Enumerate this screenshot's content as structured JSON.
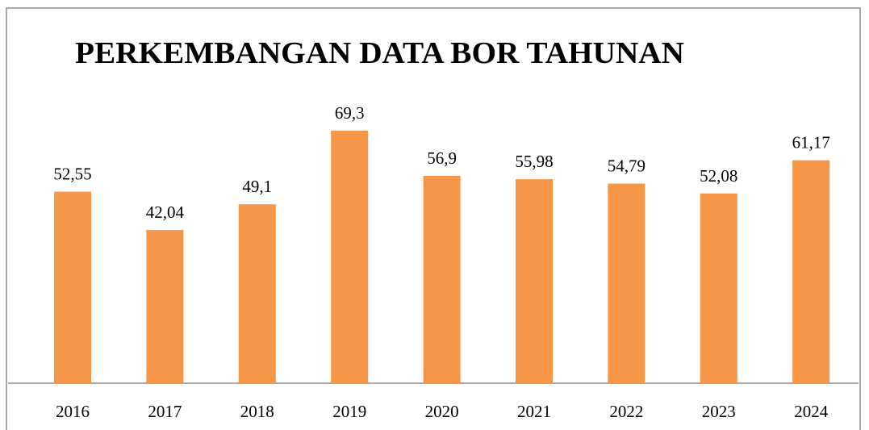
{
  "chart_data": {
    "type": "bar",
    "title": "PERKEMBANGAN DATA BOR TAHUNAN",
    "categories": [
      "2016",
      "2017",
      "2018",
      "2019",
      "2020",
      "2021",
      "2022",
      "2023",
      "2024"
    ],
    "values": [
      52.55,
      42.04,
      49.1,
      69.3,
      56.9,
      55.98,
      54.79,
      52.08,
      61.17
    ],
    "value_labels": [
      "52,55",
      "42,04",
      "49,1",
      "69,3",
      "56,9",
      "55,98",
      "54,79",
      "52,08",
      "61,17"
    ],
    "color": "#f79646"
  }
}
